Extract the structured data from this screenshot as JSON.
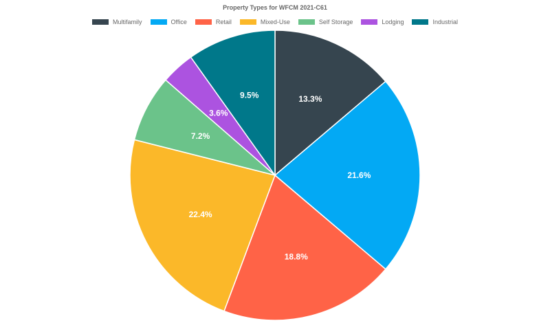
{
  "chart_data": {
    "type": "pie",
    "title": "Property Types for WFCM 2021-C61",
    "legend_position": "top",
    "slices": [
      {
        "label": "Multifamily",
        "value": 13.3,
        "display": "13.3%",
        "color": "#36454f"
      },
      {
        "label": "Office",
        "value": 21.6,
        "display": "21.6%",
        "color": "#03a9f4"
      },
      {
        "label": "Retail",
        "value": 18.8,
        "display": "18.8%",
        "color": "#ff6347"
      },
      {
        "label": "Mixed-Use",
        "value": 22.4,
        "display": "22.4%",
        "color": "#fbb829"
      },
      {
        "label": "Self Storage",
        "value": 7.2,
        "display": "7.2%",
        "color": "#6bc38a"
      },
      {
        "label": "Lodging",
        "value": 3.6,
        "display": "3.6%",
        "color": "#ac53e0"
      },
      {
        "label": "Industrial",
        "value": 9.5,
        "display": "9.5%",
        "color": "#00788a"
      }
    ]
  }
}
